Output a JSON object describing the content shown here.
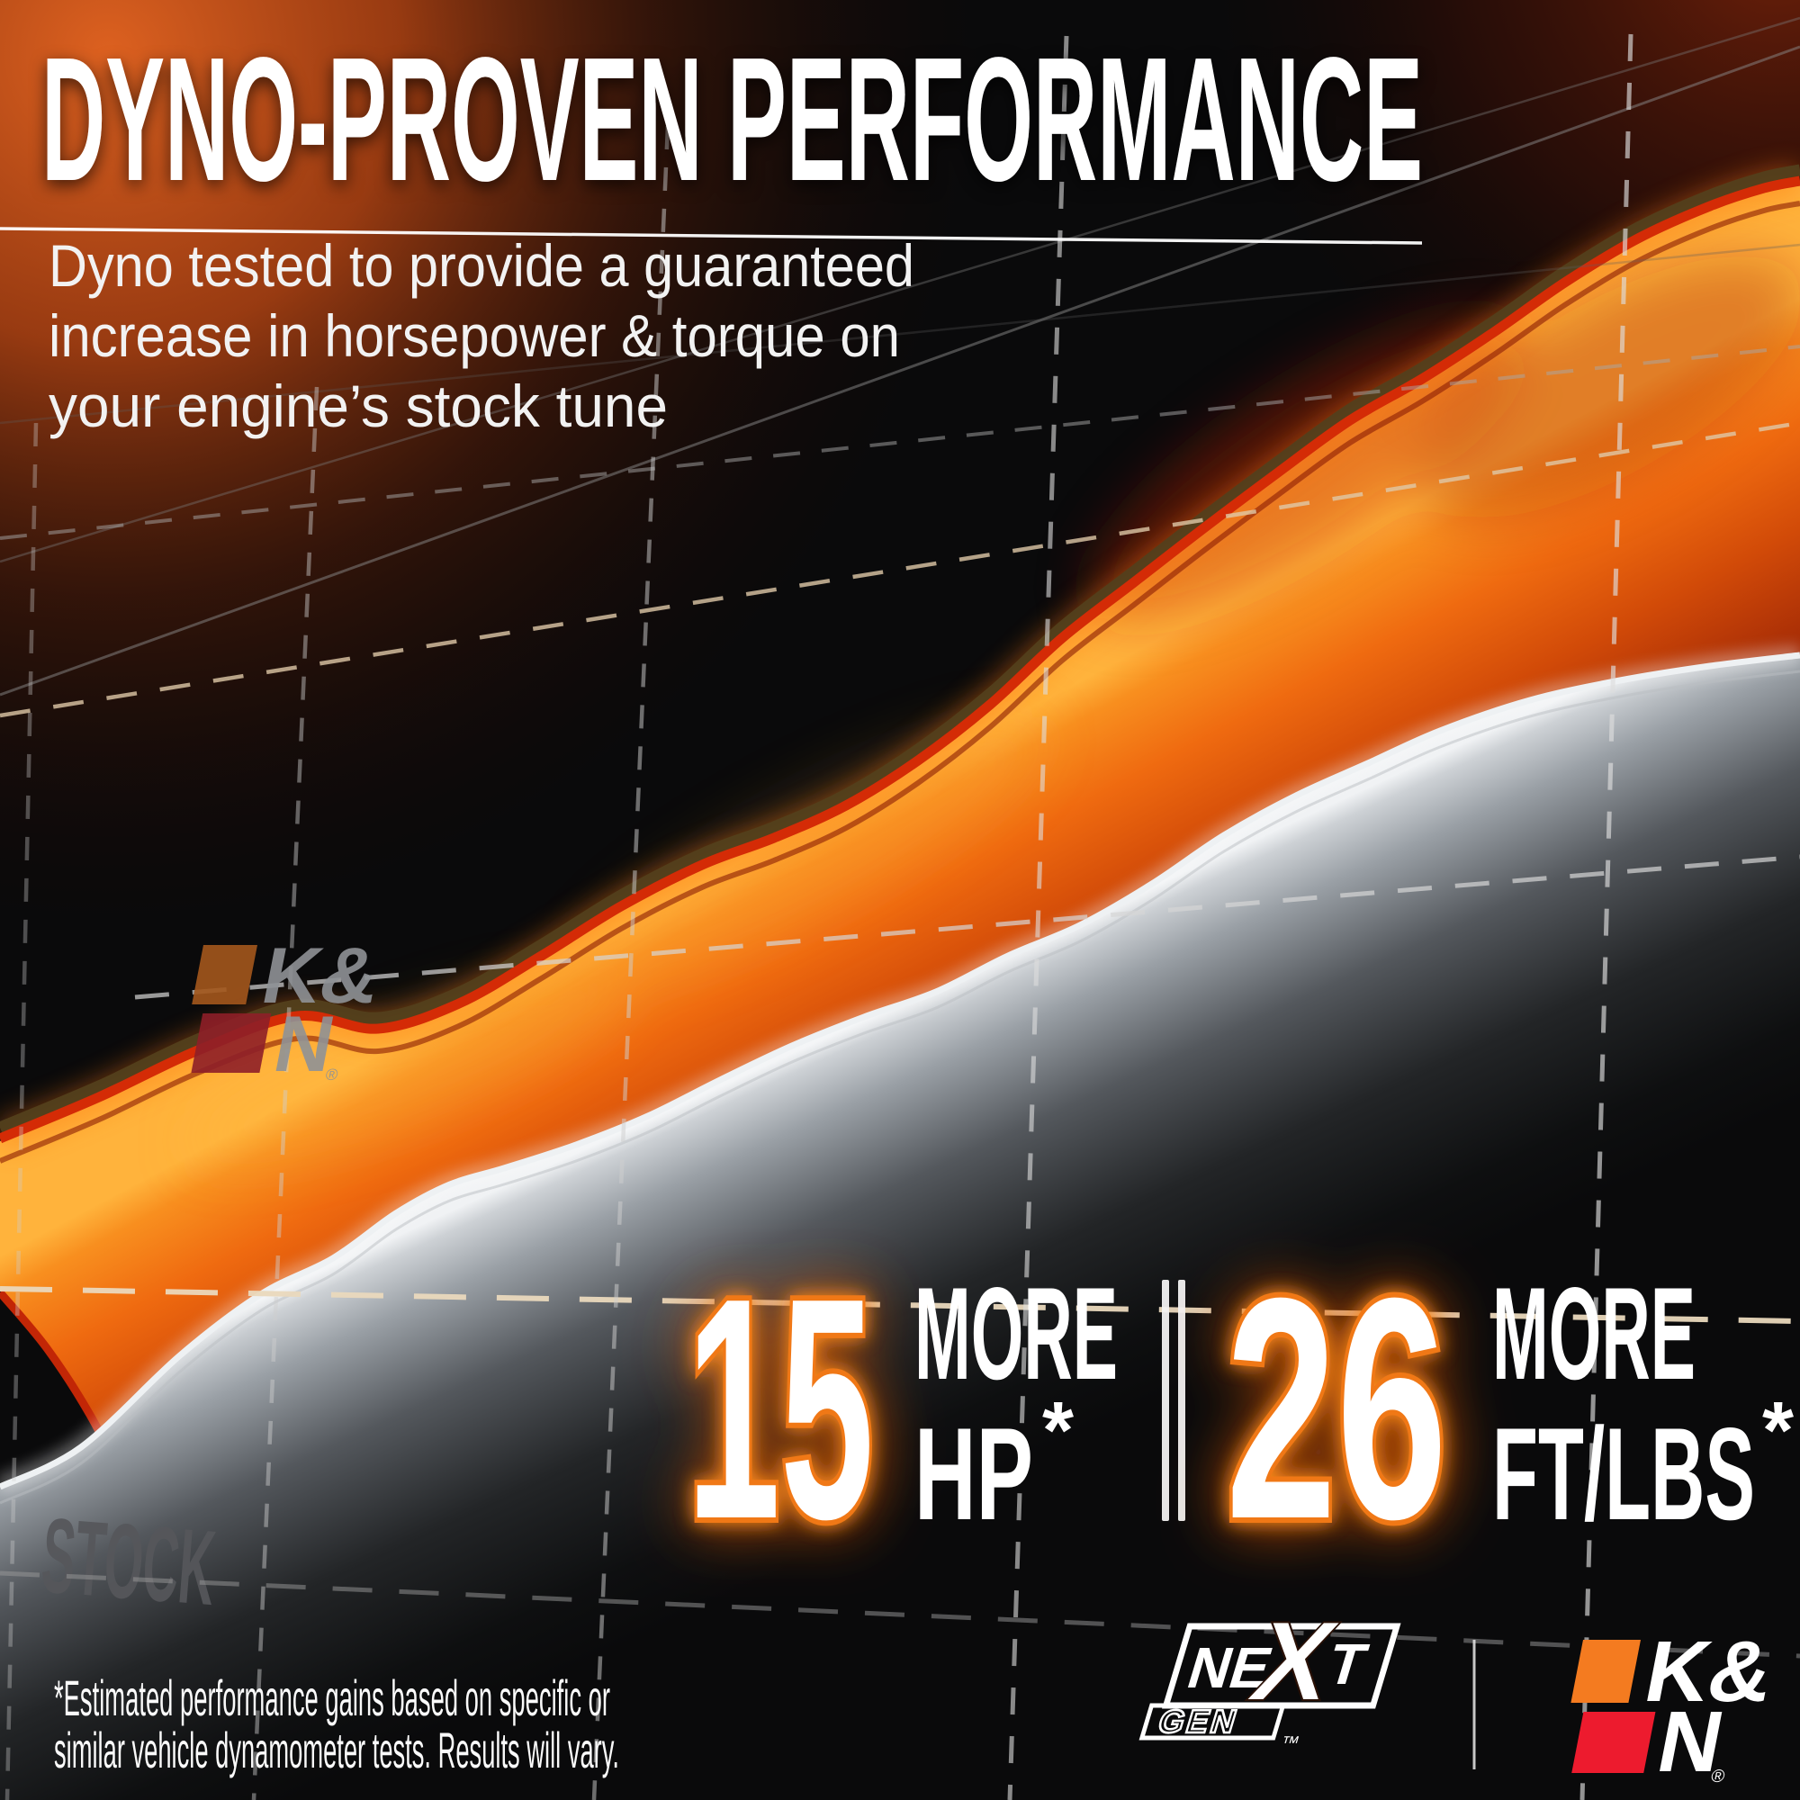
{
  "header": {
    "title": "DYNO-PROVEN PERFORMANCE",
    "subtitle_lines": [
      "Dyno tested to provide a guaranteed",
      "increase in horsepower & torque on",
      "your engine’s stock tune"
    ]
  },
  "stats": {
    "hp_value": "15",
    "more_label": "MORE",
    "hp_unit": "HP",
    "asterisk": "*",
    "torque_value": "26",
    "torque_unit": "FT/LBS"
  },
  "footer": {
    "disclaimer_lines": [
      "*Estimated performance gains based on specific or",
      "similar vehicle dynamometer tests. Results will vary."
    ],
    "nextgen": {
      "ne": "NE",
      "x": "X",
      "t": "T",
      "gen": "GEN",
      "tm": "™"
    },
    "kn": {
      "k_amp": "K&",
      "n": "N",
      "reg": "®"
    }
  },
  "watermark": {
    "k_amp": "K&",
    "n": "N",
    "reg": "®"
  },
  "brand_colors": {
    "kn_orange": "#f47b20",
    "kn_red": "#ed1b2e",
    "curve_edge_red": "#d42b06",
    "glow_orange": "#ff8c1e",
    "stock_gray": "#c9cdd1",
    "background": "#0a0a0b"
  },
  "chart_data": {
    "type": "area",
    "title": "Dyno-proven performance (stylized dyno graph)",
    "xlabel": "",
    "ylabel": "",
    "axes_visible": false,
    "legend_position": "on-curve",
    "gains": {
      "hp": 15,
      "torque_ft_lbs": 26
    },
    "series": [
      {
        "name": "K&N NextGen Intake",
        "id": "kn",
        "color": "#f07818",
        "edge_color": "#d42b06",
        "top_points": [
          [
            0,
            1268
          ],
          [
            110,
            1222
          ],
          [
            220,
            1170
          ],
          [
            330,
            1132
          ],
          [
            420,
            1146
          ],
          [
            510,
            1118
          ],
          [
            600,
            1066
          ],
          [
            690,
            1010
          ],
          [
            780,
            964
          ],
          [
            860,
            934
          ],
          [
            940,
            898
          ],
          [
            1020,
            848
          ],
          [
            1100,
            786
          ],
          [
            1180,
            712
          ],
          [
            1260,
            650
          ],
          [
            1340,
            588
          ],
          [
            1420,
            528
          ],
          [
            1500,
            470
          ],
          [
            1580,
            424
          ],
          [
            1660,
            372
          ],
          [
            1740,
            316
          ],
          [
            1820,
            268
          ],
          [
            1900,
            232
          ],
          [
            1960,
            212
          ],
          [
            2000,
            204
          ]
        ],
        "close_points": [
          [
            2000,
            1060
          ],
          [
            1600,
            1430
          ],
          [
            1300,
            1690
          ],
          [
            1040,
            1770
          ],
          [
            700,
            1825
          ],
          [
            400,
            1785
          ],
          [
            160,
            1672
          ],
          [
            96,
            1564
          ],
          [
            40,
            1480
          ],
          [
            0,
            1434
          ]
        ],
        "bottom_edge_points": [
          [
            0,
            1436
          ],
          [
            52,
            1498
          ],
          [
            100,
            1572
          ],
          [
            148,
            1665
          ]
        ]
      },
      {
        "name": "Stock",
        "id": "stock",
        "label": "STOCK",
        "color": "#c9cdd1",
        "top_points": [
          [
            0,
            1652
          ],
          [
            90,
            1608
          ],
          [
            200,
            1506
          ],
          [
            290,
            1438
          ],
          [
            370,
            1398
          ],
          [
            440,
            1348
          ],
          [
            500,
            1316
          ],
          [
            560,
            1298
          ],
          [
            640,
            1272
          ],
          [
            720,
            1240
          ],
          [
            800,
            1200
          ],
          [
            880,
            1162
          ],
          [
            960,
            1130
          ],
          [
            1040,
            1102
          ],
          [
            1120,
            1062
          ],
          [
            1200,
            1028
          ],
          [
            1280,
            982
          ],
          [
            1360,
            928
          ],
          [
            1440,
            884
          ],
          [
            1520,
            848
          ],
          [
            1600,
            812
          ],
          [
            1700,
            778
          ],
          [
            1800,
            756
          ],
          [
            1900,
            740
          ],
          [
            2000,
            728
          ]
        ]
      }
    ],
    "grid": {
      "verticals": [
        {
          "x1": 40,
          "y1": 470,
          "x2": 8,
          "y2": 2000,
          "color": "#cfcfcf",
          "w": 4.5,
          "dash": "26 20",
          "op": 0.35
        },
        {
          "x1": 352,
          "y1": 430,
          "x2": 282,
          "y2": 2000,
          "color": "#cfcfcf",
          "w": 4.5,
          "dash": "26 20",
          "op": 0.45
        },
        {
          "x1": 742,
          "y1": 140,
          "x2": 660,
          "y2": 2000,
          "color": "#cfcfcf",
          "w": 4.5,
          "dash": "26 20",
          "op": 0.5
        },
        {
          "x1": 1185,
          "y1": 40,
          "x2": 1122,
          "y2": 2000,
          "color": "#dedede",
          "w": 5,
          "dash": "30 24",
          "op": 0.6
        },
        {
          "x1": 1812,
          "y1": 38,
          "x2": 1758,
          "y2": 2000,
          "color": "#dedede",
          "w": 5,
          "dash": "30 24",
          "op": 0.65
        }
      ],
      "horizontals": [
        {
          "x1": 0,
          "y1": 598,
          "x2": 2000,
          "y2": 385,
          "color": "#a8a8a8",
          "w": 4,
          "dash": "30 24",
          "op": 0.5
        },
        {
          "x1": 0,
          "y1": 795,
          "x2": 2000,
          "y2": 470,
          "color": "#dfc9a8",
          "w": 4.5,
          "dash": "34 26",
          "op": 0.8
        },
        {
          "x1": 150,
          "y1": 1108,
          "x2": 2000,
          "y2": 952,
          "color": "#d6d6d6",
          "w": 5,
          "dash": "38 26",
          "op": 0.7
        },
        {
          "x1": 0,
          "y1": 1432,
          "x2": 2000,
          "y2": 1468,
          "color": "#ead9bd",
          "w": 6,
          "dash": "58 34",
          "op": 0.95
        },
        {
          "x1": 0,
          "y1": 1748,
          "x2": 2000,
          "y2": 1840,
          "color": "#9a9a9a",
          "w": 5,
          "dash": "44 30",
          "op": 0.5
        }
      ],
      "solids": [
        {
          "x1": 0,
          "y1": 772,
          "x2": 2000,
          "y2": 52,
          "color": "#8a8a8a",
          "w": 3,
          "op": 0.5
        },
        {
          "x1": 0,
          "y1": 624,
          "x2": 2000,
          "y2": 20,
          "color": "#7a7a7a",
          "w": 2.5,
          "op": 0.4
        },
        {
          "x1": 0,
          "y1": 470,
          "x2": 2000,
          "y2": 272,
          "color": "#5f5f5f",
          "w": 2.5,
          "op": 0.3
        }
      ]
    }
  }
}
